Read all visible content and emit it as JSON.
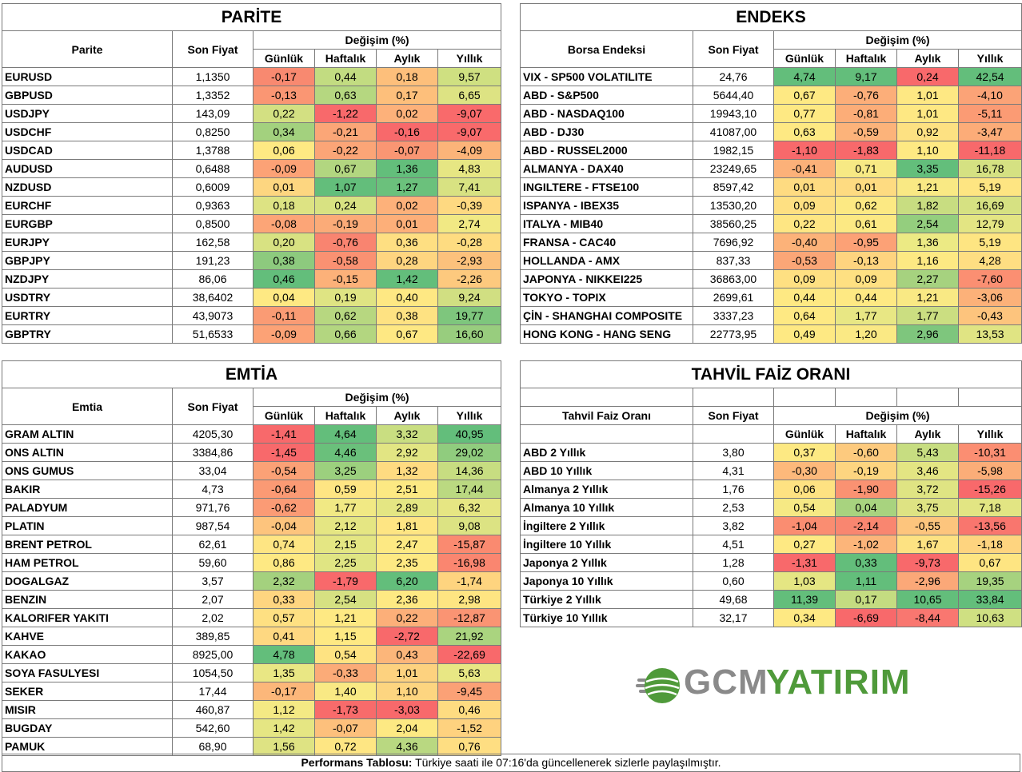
{
  "parite": {
    "title": "PARİTE",
    "col_name": "Parite",
    "col_price": "Son Fiyat",
    "col_change": "Değişim (%)",
    "col_daily": "Günlük",
    "col_weekly": "Haftalık",
    "col_monthly": "Aylık",
    "col_yearly": "Yıllık",
    "rows": [
      {
        "name": "EURUSD",
        "price": "1,1350",
        "d": "-0,17",
        "w": "0,44",
        "m": "0,18",
        "y": "9,57",
        "cd": "#f88970",
        "cw": "#c2dc81",
        "cm": "#fdbf7b",
        "cy": "#cfe081"
      },
      {
        "name": "GBPUSD",
        "price": "1,3352",
        "d": "-0,13",
        "w": "0,63",
        "m": "0,17",
        "y": "6,65",
        "cd": "#fa9673",
        "cw": "#b5d780",
        "cm": "#fdbf7b",
        "cy": "#dde383"
      },
      {
        "name": "USDJPY",
        "price": "143,09",
        "d": "0,22",
        "w": "-1,22",
        "m": "0,02",
        "y": "-9,07",
        "cd": "#d3e082",
        "cw": "#f8696b",
        "cm": "#fdb17a",
        "cy": "#f96a6b"
      },
      {
        "name": "USDCHF",
        "price": "0,8250",
        "d": "0,34",
        "w": "-0,21",
        "m": "-0,16",
        "y": "-9,07",
        "cd": "#a3d17e",
        "cw": "#fba677",
        "cm": "#f8696b",
        "cy": "#f96a6b"
      },
      {
        "name": "USDCAD",
        "price": "1,3788",
        "d": "0,06",
        "w": "-0,22",
        "m": "-0,07",
        "y": "-4,09",
        "cd": "#fee983",
        "cw": "#fba577",
        "cm": "#fa9673",
        "cy": "#fcb479"
      },
      {
        "name": "AUDUSD",
        "price": "0,6488",
        "d": "-0,09",
        "w": "0,67",
        "m": "1,36",
        "y": "4,83",
        "cd": "#fca276",
        "cw": "#b2d680",
        "cm": "#63be7b",
        "cy": "#e6e683"
      },
      {
        "name": "NZDUSD",
        "price": "0,6009",
        "d": "0,01",
        "w": "1,07",
        "m": "1,27",
        "y": "7,41",
        "cd": "#fdd680",
        "cw": "#63be7b",
        "cm": "#6bc17c",
        "cy": "#d8e282"
      },
      {
        "name": "EURCHF",
        "price": "0,9363",
        "d": "0,18",
        "w": "0,24",
        "m": "0,02",
        "y": "-0,39",
        "cd": "#dde383",
        "cw": "#d8e282",
        "cm": "#fdb17a",
        "cy": "#fed981"
      },
      {
        "name": "EURGBP",
        "price": "0,8500",
        "d": "-0,08",
        "w": "-0,19",
        "m": "0,01",
        "y": "2,74",
        "cd": "#fca577",
        "cw": "#fbab78",
        "cm": "#fdaf79",
        "cy": "#f1e984"
      },
      {
        "name": "EURJPY",
        "price": "162,58",
        "d": "0,20",
        "w": "-0,76",
        "m": "0,36",
        "y": "-0,28",
        "cd": "#d8e282",
        "cw": "#f98470",
        "cm": "#fedf82",
        "cy": "#fedc81"
      },
      {
        "name": "GBPJPY",
        "price": "191,23",
        "d": "0,38",
        "w": "-0,58",
        "m": "0,28",
        "y": "-2,93",
        "cd": "#8dca7e",
        "cw": "#fa9172",
        "cm": "#fed580",
        "cy": "#fcc17c"
      },
      {
        "name": "NZDJPY",
        "price": "86,06",
        "d": "0,46",
        "w": "-0,15",
        "m": "1,42",
        "y": "-2,26",
        "cd": "#63be7b",
        "cw": "#fcb179",
        "cm": "#63be7b",
        "cy": "#fdc97e"
      },
      {
        "name": "USDTRY",
        "price": "38,6402",
        "d": "0,04",
        "w": "0,19",
        "m": "0,40",
        "y": "9,24",
        "cd": "#fee983",
        "cw": "#dfe483",
        "cm": "#fee883",
        "cy": "#d1df82"
      },
      {
        "name": "EURTRY",
        "price": "43,9073",
        "d": "-0,11",
        "w": "0,62",
        "m": "0,38",
        "y": "19,77",
        "cd": "#fa9b74",
        "cw": "#b7d780",
        "cm": "#fee282",
        "cy": "#7ec67d"
      },
      {
        "name": "GBPTRY",
        "price": "51,6533",
        "d": "-0,09",
        "w": "0,66",
        "m": "0,67",
        "y": "16,60",
        "cd": "#fca276",
        "cw": "#b3d680",
        "cm": "#fee883",
        "cy": "#98cd7e"
      }
    ]
  },
  "endeks": {
    "title": "ENDEKS",
    "col_name": "Borsa Endeksi",
    "col_price": "Son Fiyat",
    "col_change": "Değişim (%)",
    "col_daily": "Günlük",
    "col_weekly": "Haftalık",
    "col_monthly": "Aylık",
    "col_yearly": "Yıllık",
    "rows": [
      {
        "name": "VIX  - SP500 VOLATILITE",
        "price": "24,76",
        "d": "4,74",
        "w": "9,17",
        "m": "0,24",
        "y": "42,54",
        "cd": "#63be7b",
        "cw": "#63be7b",
        "cm": "#f8696b",
        "cy": "#63be7b"
      },
      {
        "name": "ABD - S&P500",
        "price": "5644,40",
        "d": "0,67",
        "w": "-0,76",
        "m": "1,01",
        "y": "-4,10",
        "cd": "#fee983",
        "cw": "#fcae79",
        "cm": "#fee883",
        "cy": "#fba377"
      },
      {
        "name": "ABD - NASDAQ100",
        "price": "19943,10",
        "d": "0,77",
        "w": "-0,81",
        "m": "1,01",
        "y": "-5,11",
        "cd": "#fee983",
        "cw": "#fcad78",
        "cm": "#fee883",
        "cy": "#fb9b74"
      },
      {
        "name": "ABD - DJ30",
        "price": "41087,00",
        "d": "0,63",
        "w": "-0,59",
        "m": "0,92",
        "y": "-3,47",
        "cd": "#fee983",
        "cw": "#fcb37a",
        "cm": "#fde182",
        "cy": "#fcac78"
      },
      {
        "name": "ABD - RUSSEL2000",
        "price": "1982,15",
        "d": "-1,10",
        "w": "-1,83",
        "m": "1,10",
        "y": "-11,18",
        "cd": "#f8696b",
        "cw": "#f8696b",
        "cm": "#fee983",
        "cy": "#f8696b"
      },
      {
        "name": "ALMANYA - DAX40",
        "price": "23249,65",
        "d": "-0,41",
        "w": "0,71",
        "m": "3,35",
        "y": "16,78",
        "cd": "#fcb179",
        "cw": "#f7e984",
        "cm": "#63be7b",
        "cy": "#d5e182"
      },
      {
        "name": "INGILTERE - FTSE100",
        "price": "8597,42",
        "d": "0,01",
        "w": "0,01",
        "m": "1,21",
        "y": "5,19",
        "cd": "#fedb81",
        "cw": "#fedb81",
        "cm": "#f9e984",
        "cy": "#fee582"
      },
      {
        "name": "ISPANYA - IBEX35",
        "price": "13530,20",
        "d": "0,09",
        "w": "0,62",
        "m": "1,82",
        "y": "16,69",
        "cd": "#fee082",
        "cw": "#fce983",
        "cm": "#c8dd81",
        "cy": "#d6e182"
      },
      {
        "name": "ITALYA - MIB40",
        "price": "38560,25",
        "d": "0,22",
        "w": "0,61",
        "m": "2,54",
        "y": "12,79",
        "cd": "#fee683",
        "cw": "#fce983",
        "cm": "#94ce7e",
        "cy": "#e3e583"
      },
      {
        "name": "FRANSA - CAC40",
        "price": "7696,92",
        "d": "-0,40",
        "w": "-0,95",
        "m": "1,36",
        "y": "5,19",
        "cd": "#fcb279",
        "cw": "#fca176",
        "cm": "#ecea84",
        "cy": "#fee582"
      },
      {
        "name": "HOLLANDA - AMX",
        "price": "837,33",
        "d": "-0,53",
        "w": "-0,13",
        "m": "1,16",
        "y": "4,28",
        "cd": "#fba677",
        "cw": "#fed47f",
        "cm": "#fde983",
        "cy": "#fede82"
      },
      {
        "name": "JAPONYA - NIKKEI225",
        "price": "36863,00",
        "d": "0,09",
        "w": "0,09",
        "m": "2,27",
        "y": "-7,60",
        "cd": "#fee082",
        "cw": "#fee082",
        "cm": "#a6d27f",
        "cy": "#fb8f72"
      },
      {
        "name": "TOKYO - TOPIX",
        "price": "2699,61",
        "d": "0,44",
        "w": "0,44",
        "m": "1,21",
        "y": "-3,06",
        "cd": "#fee983",
        "cw": "#fee983",
        "cm": "#f9e984",
        "cy": "#fcb179"
      },
      {
        "name": "ÇİN - SHANGHAI COMPOSITE",
        "price": "3337,23",
        "d": "0,64",
        "w": "1,77",
        "m": "1,77",
        "y": "-0,43",
        "cd": "#fee983",
        "cw": "#e8e784",
        "cm": "#cbde81",
        "cy": "#fdc47d"
      },
      {
        "name": "HONG KONG - HANG SENG",
        "price": "22773,95",
        "d": "0,49",
        "w": "1,20",
        "m": "2,96",
        "y": "13,53",
        "cd": "#fee983",
        "cw": "#fae984",
        "cm": "#7ec67d",
        "cy": "#e0e483"
      }
    ]
  },
  "emtia": {
    "title": "EMTİA",
    "col_name": "Emtia",
    "col_price": "Son Fiyat",
    "col_change": "Değişim (%)",
    "col_daily": "Günlük",
    "col_weekly": "Haftalık",
    "col_monthly": "Aylık",
    "col_yearly": "Yıllık",
    "rows": [
      {
        "name": "GRAM ALTIN",
        "price": "4205,30",
        "d": "-1,41",
        "w": "4,64",
        "m": "3,32",
        "y": "40,95",
        "cd": "#f8696b",
        "cw": "#63be7b",
        "cm": "#c9de81",
        "cy": "#63be7b"
      },
      {
        "name": "ONS ALTIN",
        "price": "3384,86",
        "d": "-1,45",
        "w": "4,46",
        "m": "2,92",
        "y": "29,02",
        "cd": "#f8696b",
        "cw": "#6ac07b",
        "cm": "#e2e583",
        "cy": "#90cc7e"
      },
      {
        "name": "ONS GUMUS",
        "price": "33,04",
        "d": "-0,54",
        "w": "3,25",
        "m": "1,32",
        "y": "14,36",
        "cd": "#fba176",
        "cw": "#9cd07e",
        "cm": "#fedb81",
        "cy": "#c7dd81"
      },
      {
        "name": "BAKIR",
        "price": "4,73",
        "d": "-0,64",
        "w": "0,59",
        "m": "2,51",
        "y": "17,44",
        "cd": "#fb9a74",
        "cw": "#fee583",
        "cm": "#fce983",
        "cy": "#bbd981"
      },
      {
        "name": "PALADYUM",
        "price": "971,76",
        "d": "-0,62",
        "w": "1,77",
        "m": "2,89",
        "y": "6,32",
        "cd": "#fb9b75",
        "cw": "#f1e984",
        "cm": "#e4e683",
        "cy": "#e6e683"
      },
      {
        "name": "PLATIN",
        "price": "987,54",
        "d": "-0,04",
        "w": "2,12",
        "m": "1,81",
        "y": "9,08",
        "cd": "#fdc47d",
        "cw": "#e5e683",
        "cm": "#fee583",
        "cy": "#dce383"
      },
      {
        "name": "BRENT PETROL",
        "price": "62,61",
        "d": "0,74",
        "w": "2,15",
        "m": "2,47",
        "y": "-15,87",
        "cd": "#fee583",
        "cw": "#e4e683",
        "cm": "#fde983",
        "cy": "#fa8a70"
      },
      {
        "name": "HAM PETROL",
        "price": "59,60",
        "d": "0,86",
        "w": "2,25",
        "m": "2,35",
        "y": "-16,98",
        "cd": "#fee983",
        "cw": "#e0e583",
        "cm": "#fee983",
        "cy": "#fa8670"
      },
      {
        "name": "DOGALGAZ",
        "price": "3,57",
        "d": "2,32",
        "w": "-1,79",
        "m": "6,20",
        "y": "-1,74",
        "cd": "#a4d17e",
        "cw": "#f8696b",
        "cm": "#63be7b",
        "cy": "#fed47f"
      },
      {
        "name": "BENZIN",
        "price": "2,07",
        "d": "0,33",
        "w": "2,54",
        "m": "2,36",
        "y": "2,98",
        "cd": "#fed580",
        "cw": "#d6e182",
        "cm": "#fee983",
        "cy": "#fee582"
      },
      {
        "name": "KALORIFER YAKITI",
        "price": "2,02",
        "d": "0,57",
        "w": "1,21",
        "m": "0,22",
        "y": "-12,87",
        "cd": "#fee082",
        "cw": "#fee983",
        "cm": "#fcaf79",
        "cy": "#fa9473"
      },
      {
        "name": "KAHVE",
        "price": "389,85",
        "d": "0,41",
        "w": "1,15",
        "m": "-2,72",
        "y": "21,92",
        "cd": "#fed881",
        "cw": "#fee983",
        "cm": "#f8696b",
        "cy": "#aad47f"
      },
      {
        "name": "KAKAO",
        "price": "8925,00",
        "d": "4,78",
        "w": "0,54",
        "m": "0,43",
        "y": "-22,69",
        "cd": "#63be7b",
        "cw": "#fee382",
        "cm": "#fcb67a",
        "cy": "#f8696b"
      },
      {
        "name": "SOYA FASULYESI",
        "price": "1054,50",
        "d": "1,35",
        "w": "-0,33",
        "m": "1,01",
        "y": "5,63",
        "cd": "#e9e784",
        "cw": "#fbab78",
        "cm": "#fdd27f",
        "cy": "#e8e784"
      },
      {
        "name": "SEKER",
        "price": "17,44",
        "d": "-0,17",
        "w": "1,40",
        "m": "1,10",
        "y": "-9,45",
        "cd": "#fcb77a",
        "cw": "#f9e984",
        "cm": "#fdd580",
        "cy": "#fba176"
      },
      {
        "name": "MISIR",
        "price": "460,87",
        "d": "1,12",
        "w": "-1,73",
        "m": "-3,03",
        "y": "0,46",
        "cd": "#f4e984",
        "cw": "#f86b6b",
        "cm": "#f8696b",
        "cy": "#fedc81"
      },
      {
        "name": "BUGDAY",
        "price": "542,60",
        "d": "1,42",
        "w": "-0,07",
        "m": "2,04",
        "y": "-1,52",
        "cd": "#e5e683",
        "cw": "#fdc07c",
        "cm": "#fde983",
        "cy": "#fed27f"
      },
      {
        "name": "PAMUK",
        "price": "68,90",
        "d": "1,56",
        "w": "0,72",
        "m": "4,36",
        "y": "0,76",
        "cd": "#dee383",
        "cw": "#fee683",
        "cm": "#b9d881",
        "cy": "#fede82"
      }
    ]
  },
  "tahvil": {
    "title": "TAHVİL FAİZ ORANI",
    "col_name": "Tahvil Faiz Oranı",
    "col_price": "Son Fiyat",
    "col_change": "Değişim (%)",
    "col_daily": "Günlük",
    "col_weekly": "Haftalık",
    "col_monthly": "Aylık",
    "col_yearly": "Yıllık",
    "rows": [
      {
        "name": "ABD 2 Yıllık",
        "price": "3,80",
        "d": "0,37",
        "w": "-0,60",
        "m": "5,43",
        "y": "-10,31",
        "cd": "#fde983",
        "cw": "#fdca7e",
        "cm": "#c7dd81",
        "cy": "#fb8e72"
      },
      {
        "name": "ABD 10 Yıllık",
        "price": "4,31",
        "d": "-0,30",
        "w": "-0,19",
        "m": "3,46",
        "y": "-5,98",
        "cd": "#fdb97b",
        "cw": "#fdd580",
        "cm": "#e3e583",
        "cy": "#fbad78"
      },
      {
        "name": "Almanya 2 Yıllık",
        "price": "1,76",
        "d": "0,06",
        "w": "-1,90",
        "m": "3,72",
        "y": "-15,26",
        "cd": "#fee282",
        "cw": "#fa9272",
        "cm": "#dfe483",
        "cy": "#f8696b"
      },
      {
        "name": "Almanya 10 Yıllık",
        "price": "2,53",
        "d": "0,54",
        "w": "0,04",
        "m": "3,75",
        "y": "7,18",
        "cd": "#f6e984",
        "cw": "#a8d37f",
        "cm": "#dee383",
        "cy": "#e2e583"
      },
      {
        "name": "İngiltere 2 Yıllık",
        "price": "3,82",
        "d": "-1,04",
        "w": "-2,14",
        "m": "-0,55",
        "y": "-13,56",
        "cd": "#fa8d71",
        "cw": "#f98670",
        "cm": "#fdc57d",
        "cy": "#f9766e"
      },
      {
        "name": "İngiltere 10 Yıllık",
        "price": "4,51",
        "d": "0,27",
        "w": "-1,02",
        "m": "1,67",
        "y": "-1,18",
        "cd": "#fee983",
        "cw": "#fcb57a",
        "cm": "#fde282",
        "cy": "#fed47f"
      },
      {
        "name": "Japonya 2 Yıllık",
        "price": "1,28",
        "d": "-1,31",
        "w": "0,33",
        "m": "-9,73",
        "y": "0,67",
        "cd": "#f8696b",
        "cw": "#63be7b",
        "cm": "#f8696b",
        "cy": "#fee582"
      },
      {
        "name": "Japonya 10 Yıllık",
        "price": "0,60",
        "d": "1,03",
        "w": "1,11",
        "m": "-2,96",
        "y": "19,35",
        "cd": "#e5e683",
        "cw": "#63be7b",
        "cm": "#fba878",
        "cy": "#a6d27f"
      },
      {
        "name": "Türkiye 2 Yıllık",
        "price": "49,68",
        "d": "11,39",
        "w": "0,17",
        "m": "10,65",
        "y": "33,84",
        "cd": "#63be7b",
        "cw": "#c4dc81",
        "cm": "#63be7b",
        "cy": "#63be7b"
      },
      {
        "name": "Türkiye 10 Yıllık",
        "price": "32,17",
        "d": "0,34",
        "w": "-6,69",
        "m": "-8,44",
        "y": "10,63",
        "cd": "#fee983",
        "cw": "#f8696b",
        "cm": "#f97770",
        "cy": "#cfe082"
      }
    ]
  },
  "footer": {
    "bold": "Performans Tablosu:",
    "text": " Türkiye saati ile 07:16'da güncellenerek sizlerle paylaşılmıştır."
  },
  "logo": {
    "text_a": "GCM",
    "text_b": "YATIRIM",
    "color": "#4f9a3a"
  }
}
